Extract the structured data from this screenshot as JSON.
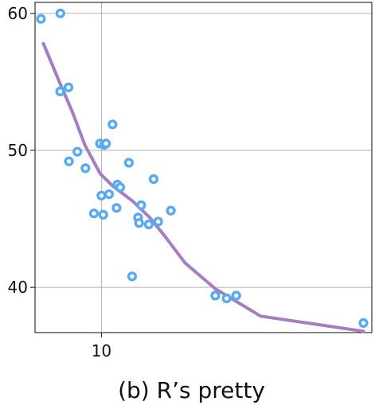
{
  "chart_data": {
    "type": "scatter",
    "title": "(b) R’s pretty",
    "xlabel": "",
    "ylabel": "",
    "x_scale": "log",
    "xlim": [
      6.0,
      80.0
    ],
    "ylim": [
      36.7,
      60.8
    ],
    "x_ticks": [
      10
    ],
    "y_ticks": [
      40,
      50,
      60
    ],
    "grid": true,
    "points_color": "#55aaf5",
    "trend_color": "#a77cc7",
    "points": [
      {
        "x": 6.28,
        "y": 59.6
      },
      {
        "x": 7.29,
        "y": 60.0
      },
      {
        "x": 7.28,
        "y": 54.3
      },
      {
        "x": 7.76,
        "y": 54.6
      },
      {
        "x": 7.79,
        "y": 49.2
      },
      {
        "x": 8.31,
        "y": 49.9
      },
      {
        "x": 8.84,
        "y": 48.7
      },
      {
        "x": 9.44,
        "y": 45.4
      },
      {
        "x": 9.89,
        "y": 50.5
      },
      {
        "x": 10.0,
        "y": 46.7
      },
      {
        "x": 10.14,
        "y": 45.3
      },
      {
        "x": 10.21,
        "y": 50.4
      },
      {
        "x": 10.36,
        "y": 50.5
      },
      {
        "x": 10.6,
        "y": 46.8
      },
      {
        "x": 10.89,
        "y": 51.9
      },
      {
        "x": 11.23,
        "y": 45.8
      },
      {
        "x": 11.31,
        "y": 47.5
      },
      {
        "x": 11.55,
        "y": 47.3
      },
      {
        "x": 12.35,
        "y": 49.1
      },
      {
        "x": 12.66,
        "y": 40.8
      },
      {
        "x": 13.25,
        "y": 45.1
      },
      {
        "x": 13.36,
        "y": 44.7
      },
      {
        "x": 13.58,
        "y": 46.0
      },
      {
        "x": 14.39,
        "y": 44.6
      },
      {
        "x": 14.93,
        "y": 47.9
      },
      {
        "x": 15.47,
        "y": 44.8
      },
      {
        "x": 17.06,
        "y": 45.6
      },
      {
        "x": 24.0,
        "y": 39.4
      },
      {
        "x": 26.2,
        "y": 39.2
      },
      {
        "x": 28.2,
        "y": 39.4
      },
      {
        "x": 75.0,
        "y": 37.4
      }
    ],
    "trend_line": [
      {
        "x": 6.4,
        "y": 57.8
      },
      {
        "x": 7.3,
        "y": 54.8
      },
      {
        "x": 8.0,
        "y": 52.8
      },
      {
        "x": 8.8,
        "y": 50.4
      },
      {
        "x": 9.9,
        "y": 48.3
      },
      {
        "x": 10.9,
        "y": 47.4
      },
      {
        "x": 12.7,
        "y": 46.3
      },
      {
        "x": 14.5,
        "y": 45.1
      },
      {
        "x": 16.2,
        "y": 43.8
      },
      {
        "x": 19.0,
        "y": 41.8
      },
      {
        "x": 24.0,
        "y": 39.9
      },
      {
        "x": 34.0,
        "y": 37.9
      },
      {
        "x": 75.0,
        "y": 36.8
      }
    ]
  }
}
